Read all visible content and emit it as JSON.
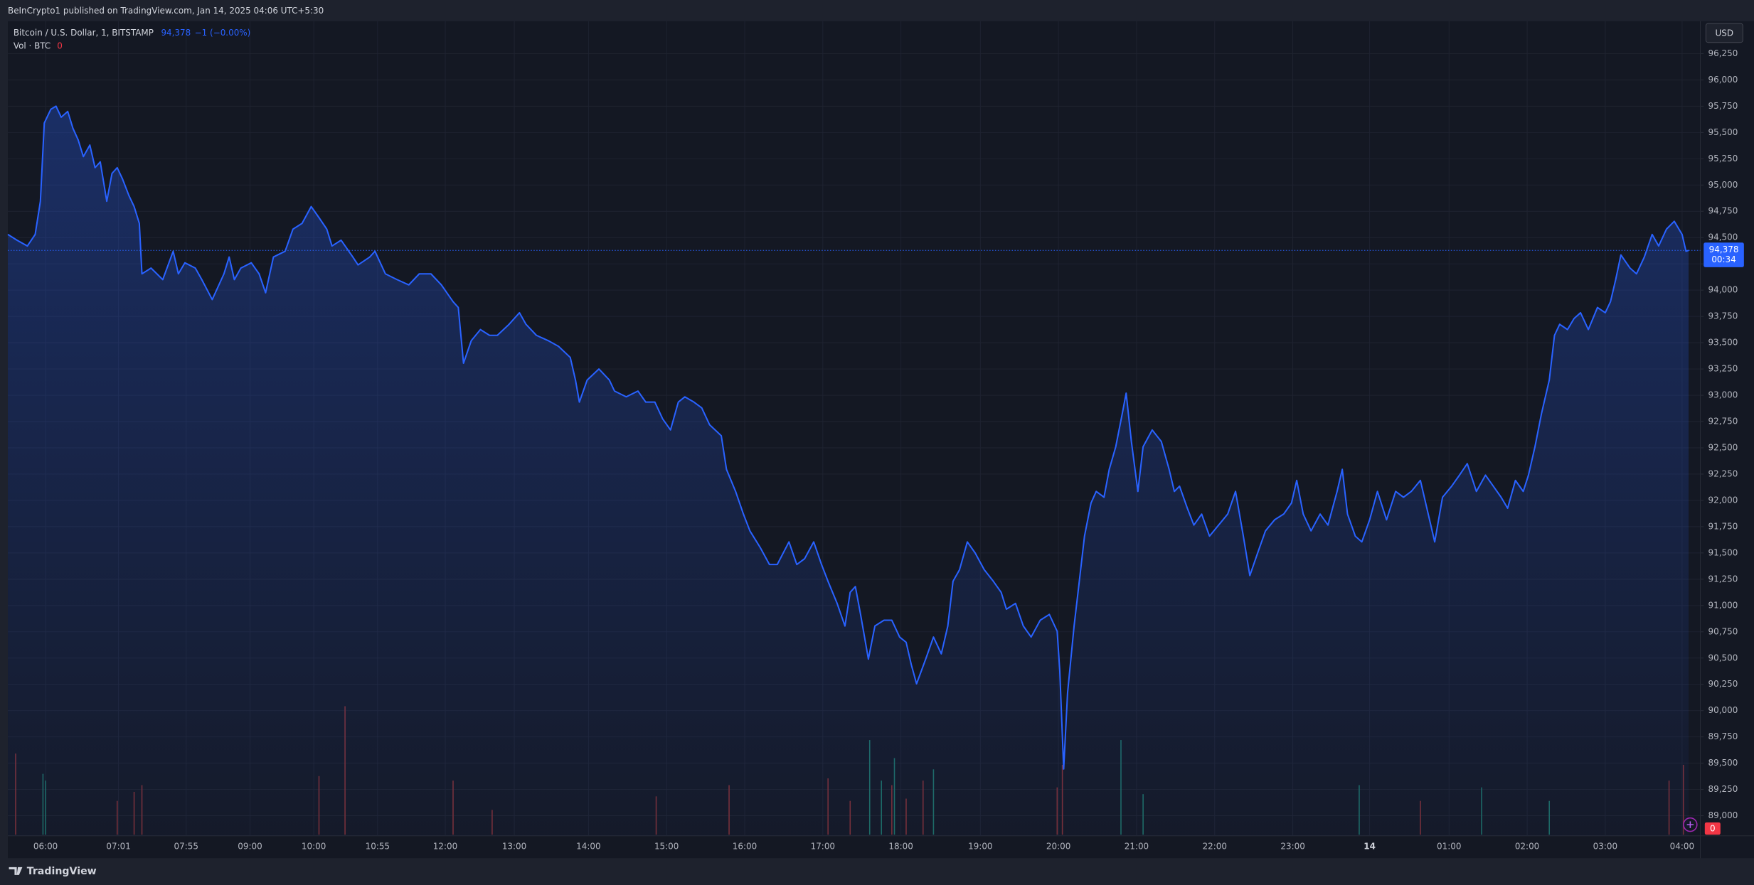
{
  "header": {
    "text": "BeInCrypto1 published on TradingView.com, Jan 14, 2025 04:06 UTC+5:30"
  },
  "brand": "TradingView",
  "chart_data": {
    "type": "area",
    "title": "Bitcoin / U.S. Dollar, 1, BITSTAMP",
    "last_value_label": "94,378",
    "change_label": "−1 (−0.00%)",
    "countdown": "00:34",
    "currency": "USD",
    "grid": true,
    "xlim": [
      0,
      1300
    ],
    "ylim": [
      88809,
      96558
    ],
    "xticks": [
      {
        "value": 29,
        "label": "06:00"
      },
      {
        "value": 85,
        "label": "07:01"
      },
      {
        "value": 137,
        "label": "07:55"
      },
      {
        "value": 186,
        "label": "09:00"
      },
      {
        "value": 235,
        "label": "10:00"
      },
      {
        "value": 284,
        "label": "10:55"
      },
      {
        "value": 336,
        "label": "12:00"
      },
      {
        "value": 389,
        "label": "13:00"
      },
      {
        "value": 446,
        "label": "14:00"
      },
      {
        "value": 506,
        "label": "15:00"
      },
      {
        "value": 566,
        "label": "16:00"
      },
      {
        "value": 626,
        "label": "17:00"
      },
      {
        "value": 686,
        "label": "18:00"
      },
      {
        "value": 747,
        "label": "19:00"
      },
      {
        "value": 807,
        "label": "20:00"
      },
      {
        "value": 867,
        "label": "21:00"
      },
      {
        "value": 927,
        "label": "22:00"
      },
      {
        "value": 987,
        "label": "23:00"
      },
      {
        "value": 1046,
        "label": "14"
      },
      {
        "value": 1107,
        "label": "01:00"
      },
      {
        "value": 1167,
        "label": "02:00"
      },
      {
        "value": 1227,
        "label": "03:00"
      },
      {
        "value": 1286,
        "label": "04:00"
      }
    ],
    "yticks": [
      {
        "value": 89000,
        "label": "89,000"
      },
      {
        "value": 89250,
        "label": "89,250"
      },
      {
        "value": 89500,
        "label": "89,500"
      },
      {
        "value": 89750,
        "label": "89,750"
      },
      {
        "value": 90000,
        "label": "90,000"
      },
      {
        "value": 90250,
        "label": "90,250"
      },
      {
        "value": 90500,
        "label": "90,500"
      },
      {
        "value": 90750,
        "label": "90,750"
      },
      {
        "value": 91000,
        "label": "91,000"
      },
      {
        "value": 91250,
        "label": "91,250"
      },
      {
        "value": 91500,
        "label": "91,500"
      },
      {
        "value": 91750,
        "label": "91,750"
      },
      {
        "value": 92000,
        "label": "92,000"
      },
      {
        "value": 92250,
        "label": "92,250"
      },
      {
        "value": 92500,
        "label": "92,500"
      },
      {
        "value": 92750,
        "label": "92,750"
      },
      {
        "value": 93000,
        "label": "93,000"
      },
      {
        "value": 93250,
        "label": "93,250"
      },
      {
        "value": 93500,
        "label": "93,500"
      },
      {
        "value": 93750,
        "label": "93,750"
      },
      {
        "value": 94000,
        "label": "94,000"
      },
      {
        "value": 94250,
        "label": "94,250"
      },
      {
        "value": 94500,
        "label": "94,500"
      },
      {
        "value": 94750,
        "label": "94,750"
      },
      {
        "value": 95000,
        "label": "95,000"
      },
      {
        "value": 95250,
        "label": "95,250"
      },
      {
        "value": 95500,
        "label": "95,500"
      },
      {
        "value": 95750,
        "label": "95,750"
      },
      {
        "value": 96000,
        "label": "96,000"
      },
      {
        "value": 96250,
        "label": "96,250"
      }
    ],
    "series": [
      {
        "color": "#2962ff",
        "x": [
          0,
          7,
          15,
          21,
          25,
          28,
          33,
          37,
          41,
          46,
          50,
          54,
          58,
          63,
          67,
          71,
          76,
          80,
          84,
          88,
          93,
          97,
          101,
          103,
          110,
          119,
          127,
          131,
          136,
          144,
          149,
          157,
          166,
          170,
          174,
          179,
          187,
          193,
          198,
          204,
          213,
          219,
          226,
          233,
          239,
          245,
          249,
          256,
          265,
          269,
          278,
          282,
          290,
          299,
          308,
          316,
          325,
          333,
          342,
          346,
          350,
          356,
          363,
          370,
          376,
          385,
          389,
          393,
          398,
          406,
          415,
          423,
          432,
          436,
          439,
          445,
          454,
          462,
          466,
          475,
          484,
          490,
          497,
          503,
          509,
          515,
          520,
          527,
          533,
          539,
          548,
          552,
          559,
          565,
          570,
          578,
          585,
          591,
          600,
          606,
          612,
          619,
          625,
          630,
          637,
          643,
          647,
          651,
          655,
          661,
          666,
          673,
          679,
          685,
          690,
          694,
          698,
          705,
          711,
          717,
          722,
          726,
          731,
          737,
          743,
          750,
          757,
          763,
          767,
          774,
          780,
          786,
          793,
          800,
          806,
          808,
          811,
          814,
          819,
          823,
          827,
          832,
          836,
          842,
          846,
          851,
          856,
          859,
          863,
          868,
          872,
          879,
          886,
          892,
          896,
          900,
          906,
          911,
          917,
          923,
          930,
          937,
          943,
          949,
          954,
          960,
          966,
          973,
          980,
          986,
          990,
          995,
          1001,
          1008,
          1014,
          1021,
          1025,
          1029,
          1035,
          1040,
          1046,
          1052,
          1059,
          1066,
          1072,
          1078,
          1085,
          1091,
          1096,
          1102,
          1109,
          1115,
          1121,
          1128,
          1135,
          1141,
          1147,
          1152,
          1158,
          1164,
          1168,
          1173,
          1178,
          1184,
          1188,
          1192,
          1198,
          1203,
          1208,
          1214,
          1221,
          1227,
          1231,
          1235,
          1239,
          1246,
          1251,
          1257,
          1263,
          1268,
          1274,
          1280,
          1286,
          1289,
          1291
        ],
        "values": [
          94530,
          94475,
          94420,
          94530,
          94845,
          95590,
          95720,
          95750,
          95645,
          95700,
          95540,
          95430,
          95270,
          95380,
          95165,
          95220,
          94845,
          95110,
          95165,
          95060,
          94900,
          94795,
          94635,
          94155,
          94210,
          94100,
          94370,
          94155,
          94260,
          94210,
          94100,
          93910,
          94155,
          94315,
          94100,
          94210,
          94260,
          94155,
          93975,
          94315,
          94370,
          94580,
          94635,
          94795,
          94690,
          94580,
          94420,
          94475,
          94315,
          94240,
          94315,
          94370,
          94155,
          94100,
          94050,
          94155,
          94155,
          94050,
          93890,
          93835,
          93305,
          93520,
          93625,
          93570,
          93570,
          93675,
          93730,
          93785,
          93675,
          93570,
          93520,
          93465,
          93360,
          93145,
          92935,
          93145,
          93250,
          93145,
          93040,
          92985,
          93040,
          92935,
          92935,
          92775,
          92670,
          92935,
          92985,
          92935,
          92880,
          92720,
          92615,
          92295,
          92085,
          91870,
          91710,
          91550,
          91390,
          91390,
          91605,
          91390,
          91445,
          91605,
          91390,
          91230,
          91020,
          90805,
          91125,
          91180,
          90915,
          90490,
          90805,
          90860,
          90860,
          90700,
          90650,
          90435,
          90255,
          90490,
          90700,
          90540,
          90805,
          91230,
          91340,
          91605,
          91500,
          91340,
          91230,
          91125,
          90965,
          91020,
          90805,
          90700,
          90860,
          90915,
          90755,
          90380,
          89445,
          90170,
          90805,
          91230,
          91660,
          91975,
          92085,
          92030,
          92295,
          92510,
          92825,
          93020,
          92560,
          92085,
          92510,
          92670,
          92560,
          92295,
          92085,
          92135,
          91925,
          91765,
          91870,
          91660,
          91765,
          91870,
          92085,
          91660,
          91285,
          91500,
          91710,
          91815,
          91870,
          91975,
          92190,
          91870,
          91710,
          91870,
          91765,
          92085,
          92295,
          91870,
          91660,
          91605,
          91815,
          92085,
          91815,
          92085,
          92030,
          92085,
          92190,
          91870,
          91605,
          92030,
          92135,
          92240,
          92350,
          92085,
          92240,
          92135,
          92030,
          91925,
          92190,
          92085,
          92240,
          92510,
          92825,
          93145,
          93570,
          93675,
          93625,
          93730,
          93785,
          93625,
          93835,
          93785,
          93890,
          94100,
          94335,
          94210,
          94155,
          94315,
          94530,
          94420,
          94580,
          94655,
          94530,
          94370,
          94378
        ]
      }
    ],
    "volume": {
      "name": "Vol · BTC",
      "last_value": 0,
      "x": [
        6,
        27,
        29,
        84,
        97,
        103,
        239,
        259,
        342,
        372,
        498,
        554,
        630,
        647,
        662,
        671,
        679,
        681,
        690,
        703,
        711,
        806,
        810,
        855,
        872,
        1038,
        1085,
        1132,
        1184,
        1276,
        1287
      ],
      "values": [
        36,
        27,
        24,
        15,
        19,
        22,
        26,
        57,
        24,
        11,
        17,
        22,
        25,
        15,
        42,
        24,
        22,
        34,
        16,
        24,
        29,
        21,
        31,
        42,
        18,
        22,
        15,
        21,
        15,
        24,
        31
      ],
      "colors": [
        "#7a2e34",
        "#1d6b62",
        "#1d6b62",
        "#7a2e34",
        "#7a2e34",
        "#7a2e34",
        "#7a2e34",
        "#7a2e34",
        "#7a2e34",
        "#7a2e34",
        "#7a2e34",
        "#7a2e34",
        "#7a2e34",
        "#7a2e34",
        "#1d6b62",
        "#1d6b62",
        "#7a2e34",
        "#1d6b62",
        "#7a2e34",
        "#7a2e34",
        "#1d6b62",
        "#7a2e34",
        "#7a2e34",
        "#1d6b62",
        "#1d6b62",
        "#1d6b62",
        "#7a2e34",
        "#1d6b62",
        "#1d6b62",
        "#7a2e34",
        "#7a2e34"
      ]
    }
  }
}
